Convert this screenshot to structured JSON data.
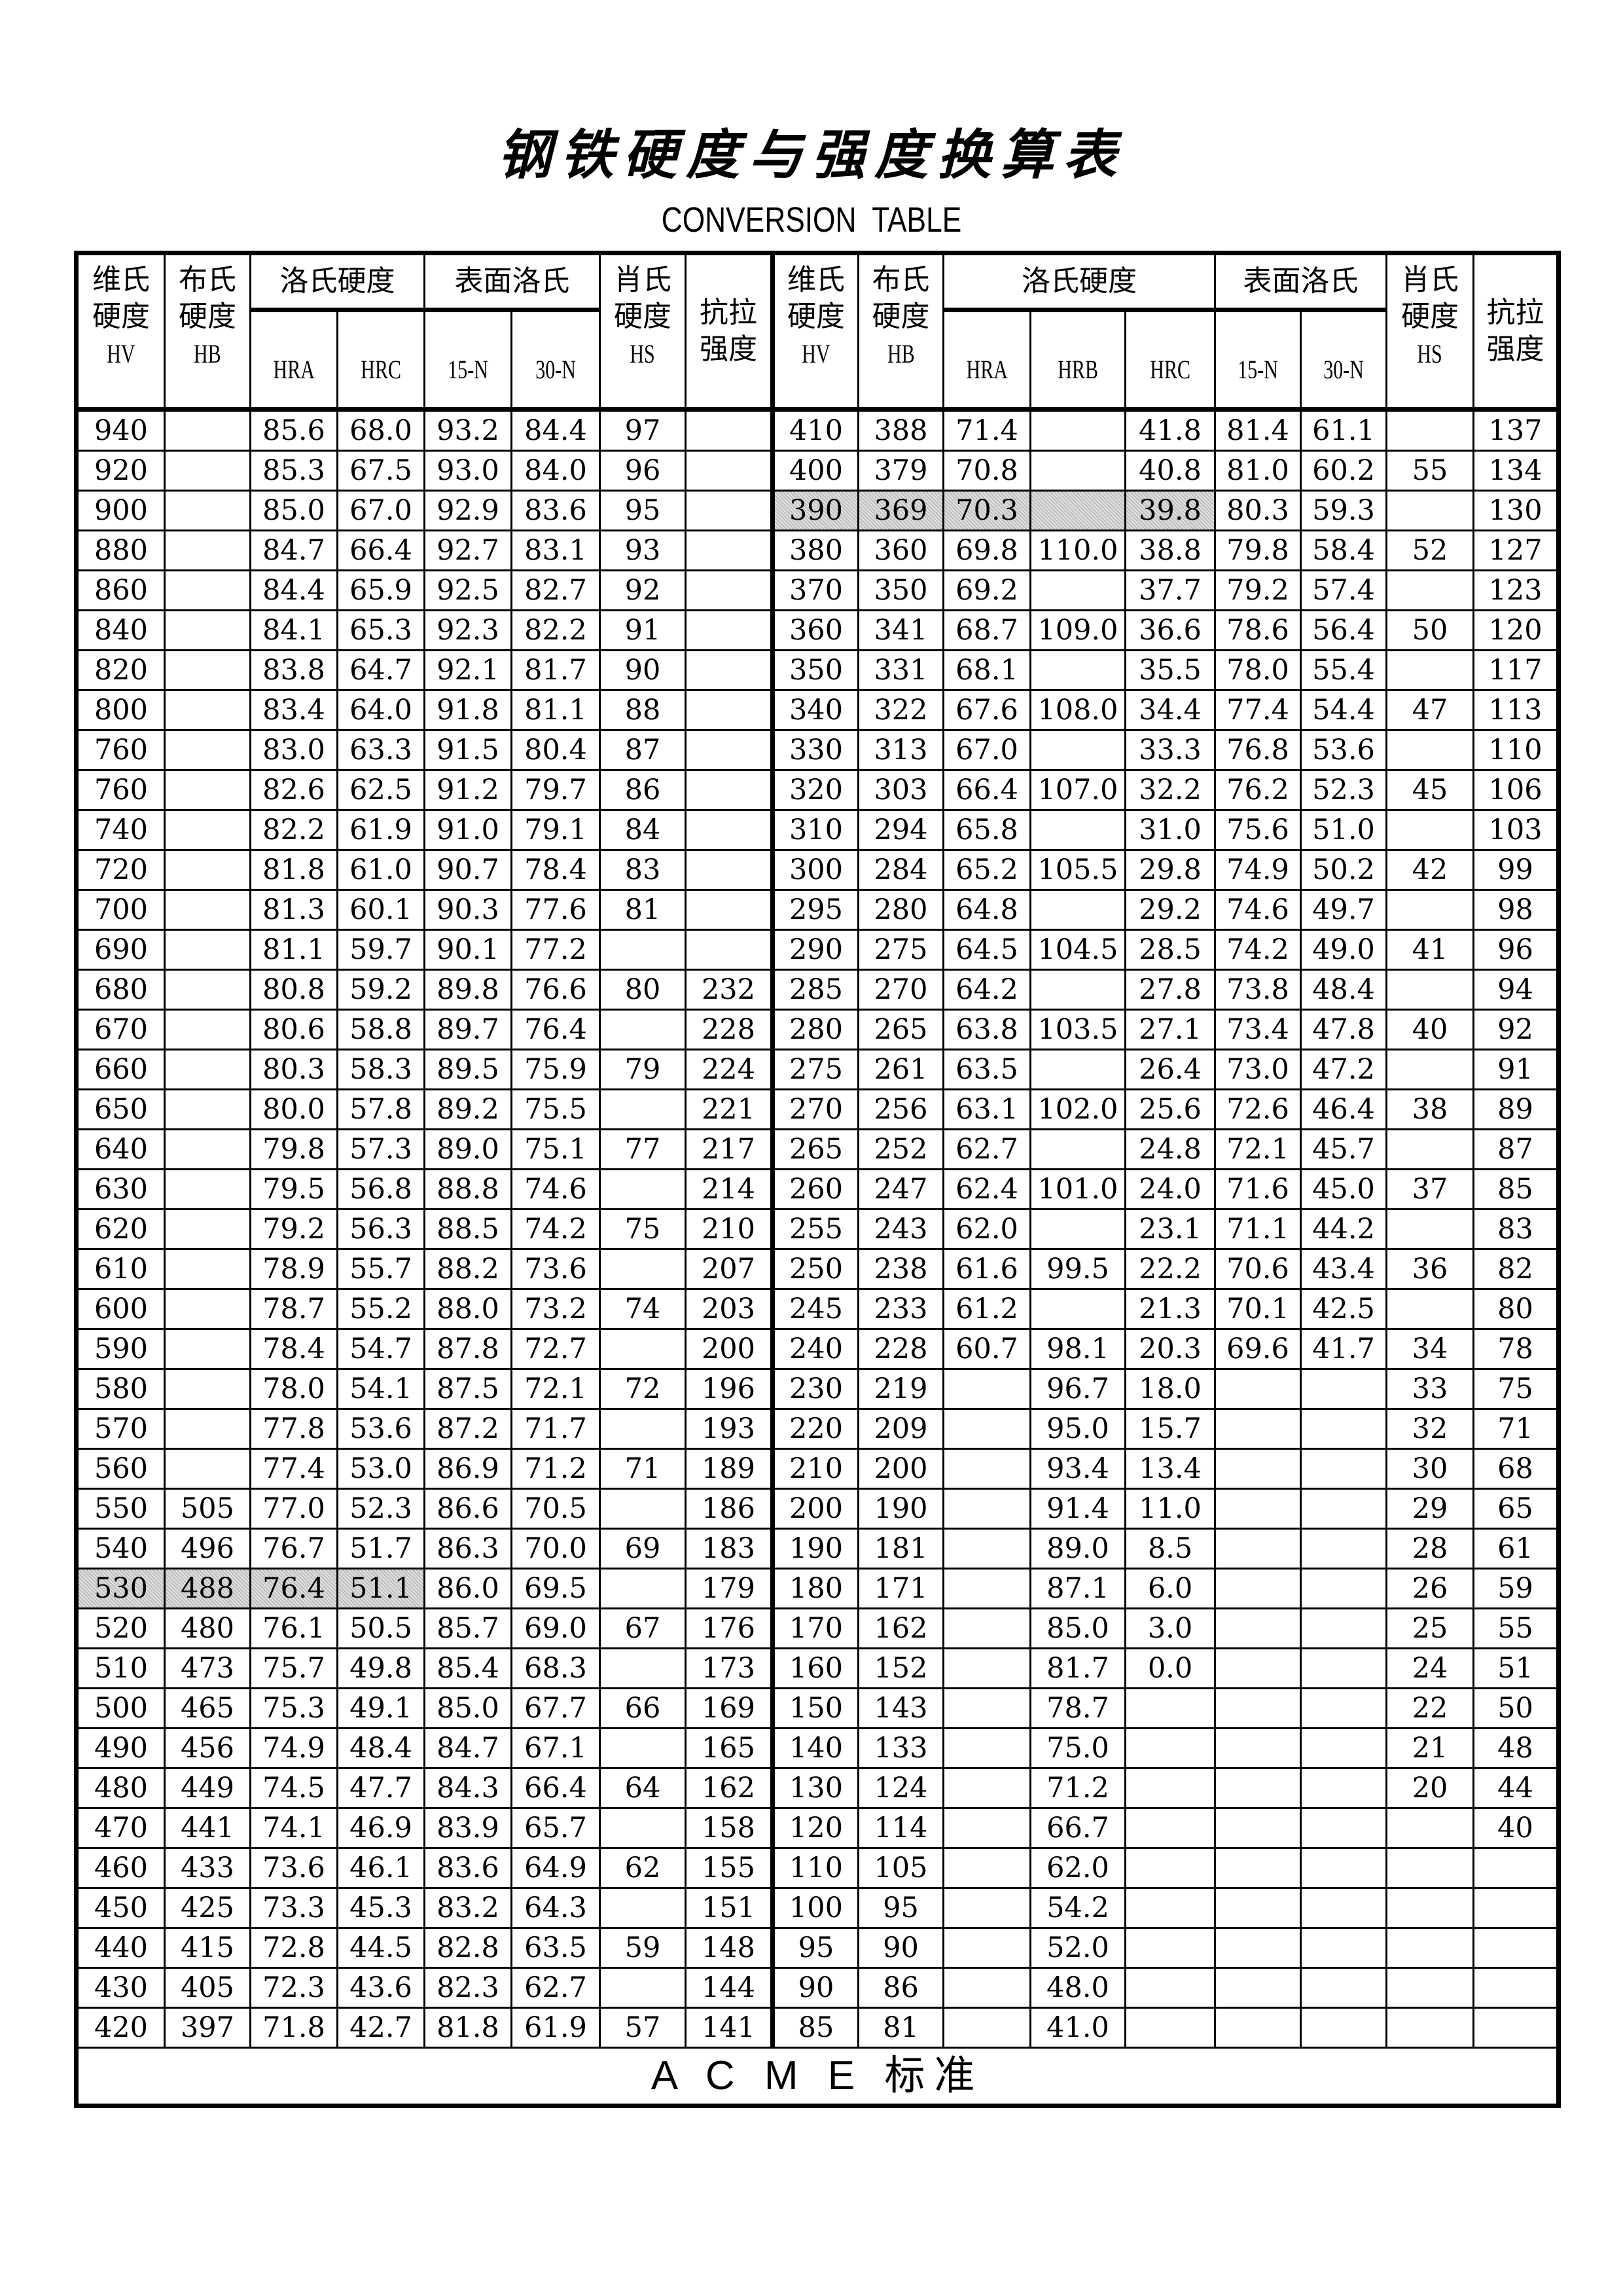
{
  "title": "钢铁硬度与强度换算表",
  "subtitle": "CONVERSION  TABLE",
  "footer": "A C M E 标准",
  "header": {
    "left": {
      "hv": [
        "维氏",
        "硬度",
        "HV"
      ],
      "hb": [
        "布氏",
        "硬度",
        "HB"
      ],
      "rockwell": "洛氏硬度",
      "rockwell_sub": [
        "HRA",
        "HRC"
      ],
      "surface": "表面洛氏",
      "surface_sub": [
        "15-N",
        "30-N"
      ],
      "hs": [
        "肖氏",
        "硬度",
        "HS"
      ],
      "tensile": [
        "抗拉",
        "强度"
      ]
    },
    "right": {
      "hv": [
        "维氏",
        "硬度",
        "HV"
      ],
      "hb": [
        "布氏",
        "硬度",
        "HB"
      ],
      "rockwell": "洛氏硬度",
      "rockwell_sub": [
        "HRA",
        "HRB",
        "HRC"
      ],
      "surface": "表面洛氏",
      "surface_sub": [
        "15-N",
        "30-N"
      ],
      "hs": [
        "肖氏",
        "硬度",
        "HS"
      ],
      "tensile": [
        "抗拉",
        "强度"
      ]
    }
  },
  "highlight_color": "#cfcfcf",
  "highlighted": {
    "left_row_hv": "530",
    "left_cols": [
      "HV",
      "HB",
      "HRA",
      "HRC"
    ],
    "right_row_hv": "390",
    "right_cols": [
      "HV",
      "HB",
      "HRA",
      "HRB",
      "HRC"
    ]
  },
  "left_columns": [
    "HV",
    "HB",
    "HRA",
    "HRC",
    "15-N",
    "30-N",
    "HS",
    "抗拉强度"
  ],
  "right_columns": [
    "HV",
    "HB",
    "HRA",
    "HRB",
    "HRC",
    "15-N",
    "30-N",
    "HS",
    "抗拉强度"
  ],
  "left_rows": [
    [
      "940",
      "",
      "85.6",
      "68.0",
      "93.2",
      "84.4",
      "97",
      ""
    ],
    [
      "920",
      "",
      "85.3",
      "67.5",
      "93.0",
      "84.0",
      "96",
      ""
    ],
    [
      "900",
      "",
      "85.0",
      "67.0",
      "92.9",
      "83.6",
      "95",
      ""
    ],
    [
      "880",
      "",
      "84.7",
      "66.4",
      "92.7",
      "83.1",
      "93",
      ""
    ],
    [
      "860",
      "",
      "84.4",
      "65.9",
      "92.5",
      "82.7",
      "92",
      ""
    ],
    [
      "840",
      "",
      "84.1",
      "65.3",
      "92.3",
      "82.2",
      "91",
      ""
    ],
    [
      "820",
      "",
      "83.8",
      "64.7",
      "92.1",
      "81.7",
      "90",
      ""
    ],
    [
      "800",
      "",
      "83.4",
      "64.0",
      "91.8",
      "81.1",
      "88",
      ""
    ],
    [
      "760",
      "",
      "83.0",
      "63.3",
      "91.5",
      "80.4",
      "87",
      ""
    ],
    [
      "760",
      "",
      "82.6",
      "62.5",
      "91.2",
      "79.7",
      "86",
      ""
    ],
    [
      "740",
      "",
      "82.2",
      "61.9",
      "91.0",
      "79.1",
      "84",
      ""
    ],
    [
      "720",
      "",
      "81.8",
      "61.0",
      "90.7",
      "78.4",
      "83",
      ""
    ],
    [
      "700",
      "",
      "81.3",
      "60.1",
      "90.3",
      "77.6",
      "81",
      ""
    ],
    [
      "690",
      "",
      "81.1",
      "59.7",
      "90.1",
      "77.2",
      "",
      ""
    ],
    [
      "680",
      "",
      "80.8",
      "59.2",
      "89.8",
      "76.6",
      "80",
      "232"
    ],
    [
      "670",
      "",
      "80.6",
      "58.8",
      "89.7",
      "76.4",
      "",
      "228"
    ],
    [
      "660",
      "",
      "80.3",
      "58.3",
      "89.5",
      "75.9",
      "79",
      "224"
    ],
    [
      "650",
      "",
      "80.0",
      "57.8",
      "89.2",
      "75.5",
      "",
      "221"
    ],
    [
      "640",
      "",
      "79.8",
      "57.3",
      "89.0",
      "75.1",
      "77",
      "217"
    ],
    [
      "630",
      "",
      "79.5",
      "56.8",
      "88.8",
      "74.6",
      "",
      "214"
    ],
    [
      "620",
      "",
      "79.2",
      "56.3",
      "88.5",
      "74.2",
      "75",
      "210"
    ],
    [
      "610",
      "",
      "78.9",
      "55.7",
      "88.2",
      "73.6",
      "",
      "207"
    ],
    [
      "600",
      "",
      "78.7",
      "55.2",
      "88.0",
      "73.2",
      "74",
      "203"
    ],
    [
      "590",
      "",
      "78.4",
      "54.7",
      "87.8",
      "72.7",
      "",
      "200"
    ],
    [
      "580",
      "",
      "78.0",
      "54.1",
      "87.5",
      "72.1",
      "72",
      "196"
    ],
    [
      "570",
      "",
      "77.8",
      "53.6",
      "87.2",
      "71.7",
      "",
      "193"
    ],
    [
      "560",
      "",
      "77.4",
      "53.0",
      "86.9",
      "71.2",
      "71",
      "189"
    ],
    [
      "550",
      "505",
      "77.0",
      "52.3",
      "86.6",
      "70.5",
      "",
      "186"
    ],
    [
      "540",
      "496",
      "76.7",
      "51.7",
      "86.3",
      "70.0",
      "69",
      "183"
    ],
    [
      "530",
      "488",
      "76.4",
      "51.1",
      "86.0",
      "69.5",
      "",
      "179"
    ],
    [
      "520",
      "480",
      "76.1",
      "50.5",
      "85.7",
      "69.0",
      "67",
      "176"
    ],
    [
      "510",
      "473",
      "75.7",
      "49.8",
      "85.4",
      "68.3",
      "",
      "173"
    ],
    [
      "500",
      "465",
      "75.3",
      "49.1",
      "85.0",
      "67.7",
      "66",
      "169"
    ],
    [
      "490",
      "456",
      "74.9",
      "48.4",
      "84.7",
      "67.1",
      "",
      "165"
    ],
    [
      "480",
      "449",
      "74.5",
      "47.7",
      "84.3",
      "66.4",
      "64",
      "162"
    ],
    [
      "470",
      "441",
      "74.1",
      "46.9",
      "83.9",
      "65.7",
      "",
      "158"
    ],
    [
      "460",
      "433",
      "73.6",
      "46.1",
      "83.6",
      "64.9",
      "62",
      "155"
    ],
    [
      "450",
      "425",
      "73.3",
      "45.3",
      "83.2",
      "64.3",
      "",
      "151"
    ],
    [
      "440",
      "415",
      "72.8",
      "44.5",
      "82.8",
      "63.5",
      "59",
      "148"
    ],
    [
      "430",
      "405",
      "72.3",
      "43.6",
      "82.3",
      "62.7",
      "",
      "144"
    ],
    [
      "420",
      "397",
      "71.8",
      "42.7",
      "81.8",
      "61.9",
      "57",
      "141"
    ]
  ],
  "right_rows": [
    [
      "410",
      "388",
      "71.4",
      "",
      "41.8",
      "81.4",
      "61.1",
      "",
      "137"
    ],
    [
      "400",
      "379",
      "70.8",
      "",
      "40.8",
      "81.0",
      "60.2",
      "55",
      "134"
    ],
    [
      "390",
      "369",
      "70.3",
      "",
      "39.8",
      "80.3",
      "59.3",
      "",
      "130"
    ],
    [
      "380",
      "360",
      "69.8",
      "110.0",
      "38.8",
      "79.8",
      "58.4",
      "52",
      "127"
    ],
    [
      "370",
      "350",
      "69.2",
      "",
      "37.7",
      "79.2",
      "57.4",
      "",
      "123"
    ],
    [
      "360",
      "341",
      "68.7",
      "109.0",
      "36.6",
      "78.6",
      "56.4",
      "50",
      "120"
    ],
    [
      "350",
      "331",
      "68.1",
      "",
      "35.5",
      "78.0",
      "55.4",
      "",
      "117"
    ],
    [
      "340",
      "322",
      "67.6",
      "108.0",
      "34.4",
      "77.4",
      "54.4",
      "47",
      "113"
    ],
    [
      "330",
      "313",
      "67.0",
      "",
      "33.3",
      "76.8",
      "53.6",
      "",
      "110"
    ],
    [
      "320",
      "303",
      "66.4",
      "107.0",
      "32.2",
      "76.2",
      "52.3",
      "45",
      "106"
    ],
    [
      "310",
      "294",
      "65.8",
      "",
      "31.0",
      "75.6",
      "51.0",
      "",
      "103"
    ],
    [
      "300",
      "284",
      "65.2",
      "105.5",
      "29.8",
      "74.9",
      "50.2",
      "42",
      "99"
    ],
    [
      "295",
      "280",
      "64.8",
      "",
      "29.2",
      "74.6",
      "49.7",
      "",
      "98"
    ],
    [
      "290",
      "275",
      "64.5",
      "104.5",
      "28.5",
      "74.2",
      "49.0",
      "41",
      "96"
    ],
    [
      "285",
      "270",
      "64.2",
      "",
      "27.8",
      "73.8",
      "48.4",
      "",
      "94"
    ],
    [
      "280",
      "265",
      "63.8",
      "103.5",
      "27.1",
      "73.4",
      "47.8",
      "40",
      "92"
    ],
    [
      "275",
      "261",
      "63.5",
      "",
      "26.4",
      "73.0",
      "47.2",
      "",
      "91"
    ],
    [
      "270",
      "256",
      "63.1",
      "102.0",
      "25.6",
      "72.6",
      "46.4",
      "38",
      "89"
    ],
    [
      "265",
      "252",
      "62.7",
      "",
      "24.8",
      "72.1",
      "45.7",
      "",
      "87"
    ],
    [
      "260",
      "247",
      "62.4",
      "101.0",
      "24.0",
      "71.6",
      "45.0",
      "37",
      "85"
    ],
    [
      "255",
      "243",
      "62.0",
      "",
      "23.1",
      "71.1",
      "44.2",
      "",
      "83"
    ],
    [
      "250",
      "238",
      "61.6",
      "99.5",
      "22.2",
      "70.6",
      "43.4",
      "36",
      "82"
    ],
    [
      "245",
      "233",
      "61.2",
      "",
      "21.3",
      "70.1",
      "42.5",
      "",
      "80"
    ],
    [
      "240",
      "228",
      "60.7",
      "98.1",
      "20.3",
      "69.6",
      "41.7",
      "34",
      "78"
    ],
    [
      "230",
      "219",
      "",
      "96.7",
      "18.0",
      "",
      "",
      "33",
      "75"
    ],
    [
      "220",
      "209",
      "",
      "95.0",
      "15.7",
      "",
      "",
      "32",
      "71"
    ],
    [
      "210",
      "200",
      "",
      "93.4",
      "13.4",
      "",
      "",
      "30",
      "68"
    ],
    [
      "200",
      "190",
      "",
      "91.4",
      "11.0",
      "",
      "",
      "29",
      "65"
    ],
    [
      "190",
      "181",
      "",
      "89.0",
      "8.5",
      "",
      "",
      "28",
      "61"
    ],
    [
      "180",
      "171",
      "",
      "87.1",
      "6.0",
      "",
      "",
      "26",
      "59"
    ],
    [
      "170",
      "162",
      "",
      "85.0",
      "3.0",
      "",
      "",
      "25",
      "55"
    ],
    [
      "160",
      "152",
      "",
      "81.7",
      "0.0",
      "",
      "",
      "24",
      "51"
    ],
    [
      "150",
      "143",
      "",
      "78.7",
      "",
      "",
      "",
      "22",
      "50"
    ],
    [
      "140",
      "133",
      "",
      "75.0",
      "",
      "",
      "",
      "21",
      "48"
    ],
    [
      "130",
      "124",
      "",
      "71.2",
      "",
      "",
      "",
      "20",
      "44"
    ],
    [
      "120",
      "114",
      "",
      "66.7",
      "",
      "",
      "",
      "",
      "40"
    ],
    [
      "110",
      "105",
      "",
      "62.0",
      "",
      "",
      "",
      "",
      ""
    ],
    [
      "100",
      "95",
      "",
      "54.2",
      "",
      "",
      "",
      "",
      ""
    ],
    [
      "95",
      "90",
      "",
      "52.0",
      "",
      "",
      "",
      "",
      ""
    ],
    [
      "90",
      "86",
      "",
      "48.0",
      "",
      "",
      "",
      "",
      ""
    ],
    [
      "85",
      "81",
      "",
      "41.0",
      "",
      "",
      "",
      "",
      ""
    ]
  ]
}
